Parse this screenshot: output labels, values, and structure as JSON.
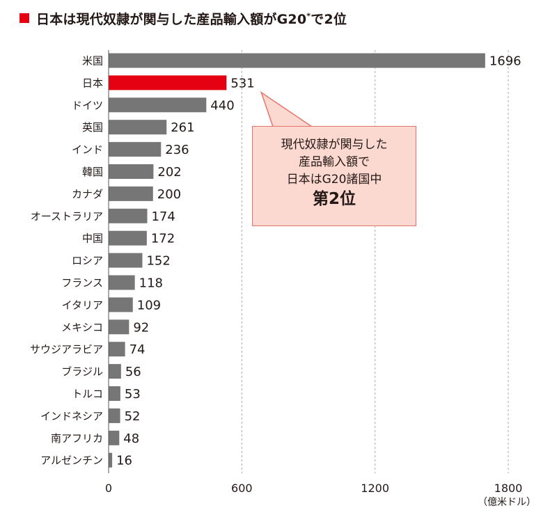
{
  "title": {
    "main": "日本は現代奴隷が関与した産品輸入額がG20",
    "asterisk": "*",
    "suffix": "で2位"
  },
  "callout": {
    "line1": "現代奴隷が関与した",
    "line2": "産品輸入額で",
    "line3": "日本はG20諸国中",
    "line4": "第2位"
  },
  "colors": {
    "bar": "#767676",
    "highlight": "#e50012",
    "accent": "#e50012",
    "callout_bg": "#fcd9d0",
    "callout_border": "#e8736a"
  },
  "chart_data": {
    "type": "bar",
    "orientation": "horizontal",
    "categories": [
      "米国",
      "日本",
      "ドイツ",
      "英国",
      "インド",
      "韓国",
      "カナダ",
      "オーストラリア",
      "中国",
      "ロシア",
      "フランス",
      "イタリア",
      "メキシコ",
      "サウジアラビア",
      "ブラジル",
      "トルコ",
      "インドネシア",
      "南アフリカ",
      "アルゼンチン"
    ],
    "values": [
      1696,
      531,
      440,
      261,
      236,
      202,
      200,
      174,
      172,
      152,
      118,
      109,
      92,
      74,
      56,
      53,
      52,
      48,
      16
    ],
    "highlight_category": "日本",
    "xlim": [
      0,
      1800
    ],
    "xticks": [
      0,
      600,
      1200,
      1800
    ],
    "unit": "（億米ドル）",
    "grid": true
  }
}
